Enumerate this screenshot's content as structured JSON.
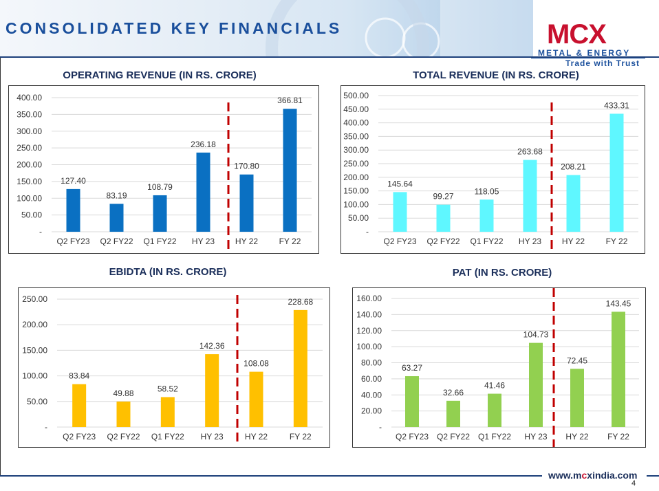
{
  "slide": {
    "title": "CONSOLIDATED KEY FINANCIALS",
    "page_number": "4",
    "footer_url_pre": "www.m",
    "footer_url_x": "c",
    "footer_url_post": "xindia.com"
  },
  "logo": {
    "wordmark": "MCX",
    "subtitle": "METAL & ENERGY",
    "tagline": "Trade with Trust"
  },
  "colors": {
    "brand_red": "#c8102e",
    "brand_blue": "#1a4f9c",
    "operating_revenue_bar": "#0a70c2",
    "total_revenue_bar": "#5ff7ff",
    "ebidta_bar": "#ffc000",
    "pat_bar": "#92d050",
    "divider": "#c00000"
  },
  "chart_data": [
    {
      "type": "bar",
      "title": "OPERATING REVENUE (IN RS. CRORE)",
      "categories": [
        "Q2 FY23",
        "Q2 FY22",
        "Q1 FY22",
        "HY 23",
        "HY 22",
        "FY 22"
      ],
      "values": [
        127.4,
        83.19,
        108.79,
        236.18,
        170.8,
        366.81
      ],
      "value_labels": [
        "127.40",
        "83.19",
        "108.79",
        "236.18",
        "170.80",
        "366.81"
      ],
      "yticks": [
        "-",
        "50.00",
        "100.00",
        "150.00",
        "200.00",
        "250.00",
        "300.00",
        "350.00",
        "400.00"
      ],
      "ylim": [
        0,
        400
      ],
      "color": "#0a70c2",
      "grid": true,
      "divider_after_index": 3
    },
    {
      "type": "bar",
      "title": "TOTAL REVENUE (IN RS. CRORE)",
      "categories": [
        "Q2 FY23",
        "Q2 FY22",
        "Q1 FY22",
        "HY 23",
        "HY 22",
        "FY 22"
      ],
      "values": [
        145.64,
        99.27,
        118.05,
        263.68,
        208.21,
        433.31
      ],
      "value_labels": [
        "145.64",
        "99.27",
        "118.05",
        "263.68",
        "208.21",
        "433.31"
      ],
      "yticks": [
        "-",
        "50.00",
        "100.00",
        "150.00",
        "200.00",
        "250.00",
        "300.00",
        "350.00",
        "400.00",
        "450.00",
        "500.00"
      ],
      "ylim": [
        0,
        500
      ],
      "color": "#5ff7ff",
      "grid": true,
      "divider_after_index": 3
    },
    {
      "type": "bar",
      "title": "EBIDTA (IN RS. CRORE)",
      "categories": [
        "Q2 FY23",
        "Q2 FY22",
        "Q1 FY22",
        "HY 23",
        "HY 22",
        "FY 22"
      ],
      "values": [
        83.84,
        49.88,
        58.52,
        142.36,
        108.08,
        228.68
      ],
      "value_labels": [
        "83.84",
        "49.88",
        "58.52",
        "142.36",
        "108.08",
        "228.68"
      ],
      "yticks": [
        "-",
        "50.00",
        "100.00",
        "150.00",
        "200.00",
        "250.00"
      ],
      "ylim": [
        0,
        250
      ],
      "color": "#ffc000",
      "grid": true,
      "divider_after_index": 3
    },
    {
      "type": "bar",
      "title": "PAT (IN RS. CRORE)",
      "categories": [
        "Q2 FY23",
        "Q2 FY22",
        "Q1 FY22",
        "HY 23",
        "HY 22",
        "FY 22"
      ],
      "values": [
        63.27,
        32.66,
        41.46,
        104.73,
        72.45,
        143.45
      ],
      "value_labels": [
        "63.27",
        "32.66",
        "41.46",
        "104.73",
        "72.45",
        "143.45"
      ],
      "yticks": [
        "-",
        "20.00",
        "40.00",
        "60.00",
        "80.00",
        "100.00",
        "120.00",
        "140.00",
        "160.00"
      ],
      "ylim": [
        0,
        160
      ],
      "color": "#92d050",
      "grid": true,
      "divider_after_index": 3
    }
  ]
}
